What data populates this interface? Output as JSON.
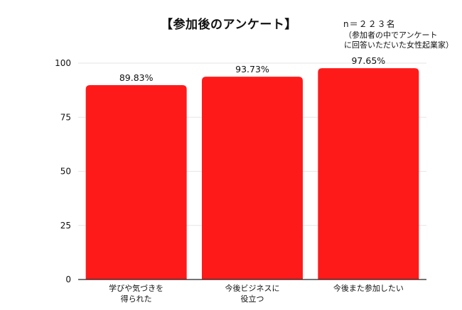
{
  "chart_data": {
    "type": "bar",
    "title": "【参加後のアンケート】",
    "annotations": {
      "sample_size": "n＝２２３名",
      "note_line1": "（参加者の中でアンケート",
      "note_line2": "に回答いただいた女性起業家）"
    },
    "categories": [
      [
        "学びや気づきを",
        "得られた"
      ],
      [
        "今後ビジネスに",
        "役立つ"
      ],
      [
        "今後また参加したい"
      ]
    ],
    "values": [
      89.83,
      93.73,
      97.65
    ],
    "value_labels": [
      "89.83%",
      "93.73%",
      "97.65%"
    ],
    "ylim": [
      0,
      100
    ],
    "yticks": [
      0,
      25,
      50,
      75,
      100
    ],
    "xlabel": "",
    "ylabel": "",
    "grid": true,
    "legend": "none",
    "colors": {
      "bar": "#ff1a1a",
      "grid": "#e6e6e6",
      "axis": "#222222"
    }
  }
}
